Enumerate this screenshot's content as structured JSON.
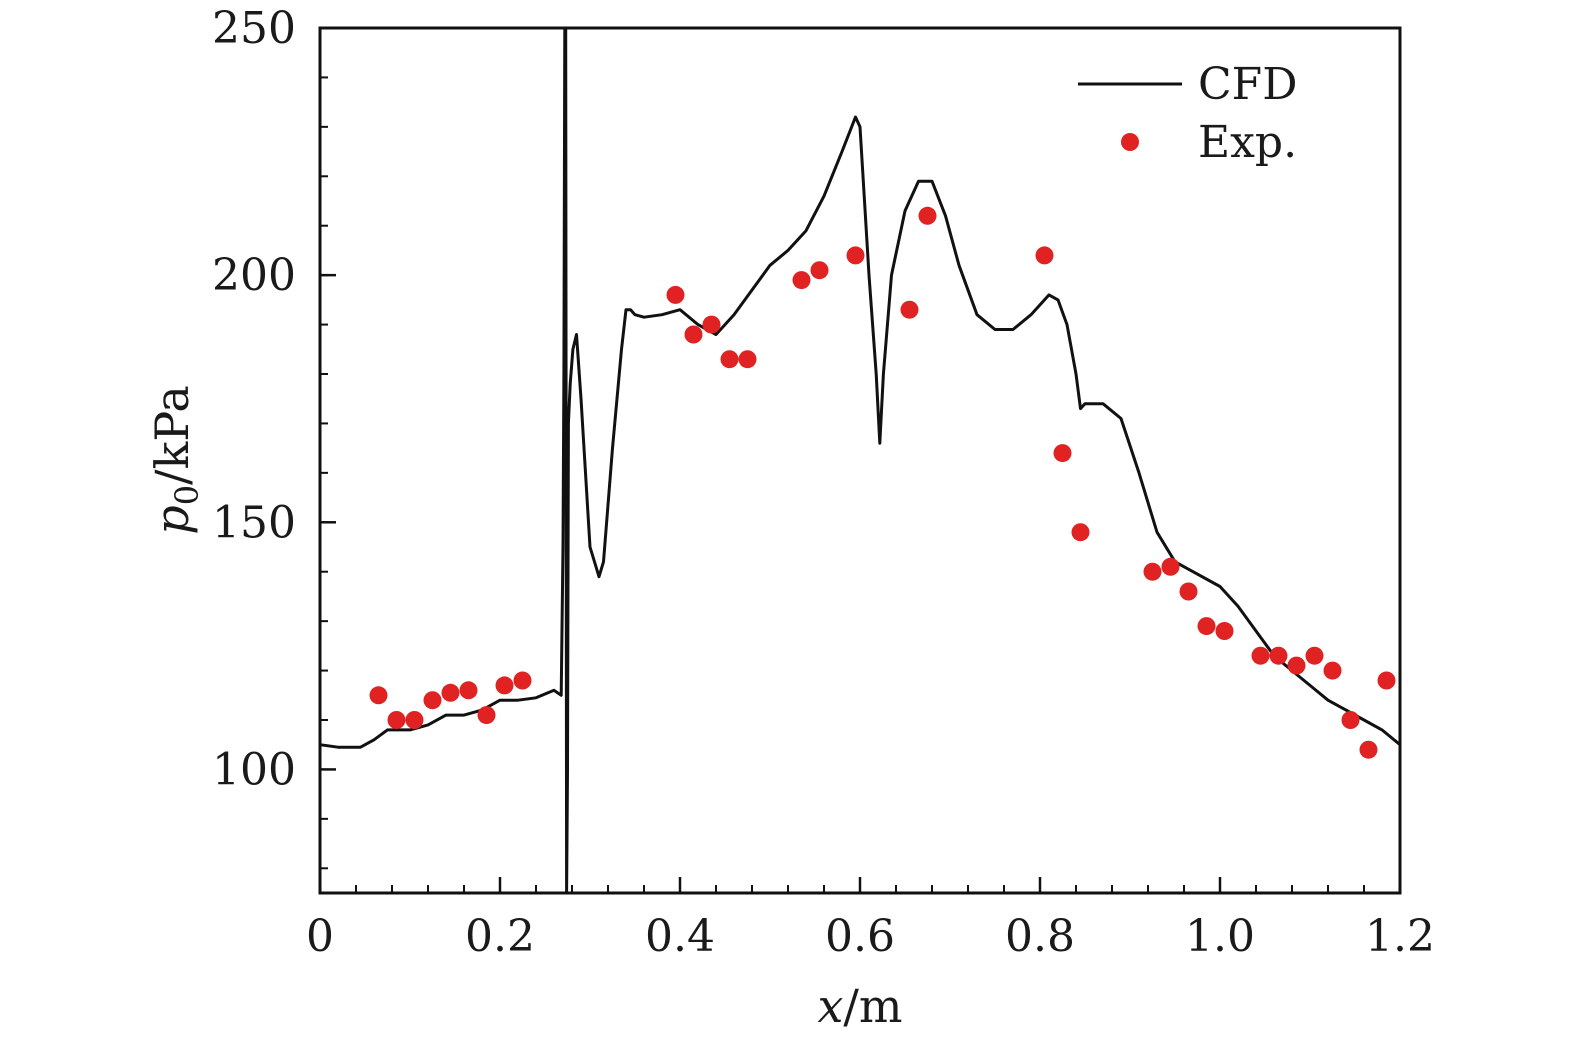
{
  "chart_data": {
    "type": "line",
    "title": "",
    "xlabel": "x/m",
    "ylabel": "p0/kPa",
    "xlabel_parts": {
      "var": "x",
      "unit": "/m"
    },
    "ylabel_parts": {
      "var": "p",
      "sub": "0",
      "unit": "/kPa"
    },
    "xlim": [
      0,
      1.2
    ],
    "ylim": [
      75,
      250
    ],
    "x_ticks": [
      0,
      0.2,
      0.4,
      0.6,
      0.8,
      1.0,
      1.2
    ],
    "x_tick_labels": [
      "0",
      "0.2",
      "0.4",
      "0.6",
      "0.8",
      "1.0",
      "1.2"
    ],
    "y_ticks": [
      100,
      150,
      200,
      250
    ],
    "y_tick_labels": [
      "100",
      "150",
      "200",
      "250"
    ],
    "x_minor_step": 0.04,
    "y_minor_step": 10,
    "grid": false,
    "legend_position": "top-right",
    "colors": {
      "line": "#111111",
      "points": "#e02222",
      "axis": "#111111"
    },
    "series": [
      {
        "name": "CFD",
        "kind": "line",
        "x": [
          0.0,
          0.02,
          0.045,
          0.06,
          0.075,
          0.1,
          0.12,
          0.14,
          0.16,
          0.18,
          0.2,
          0.22,
          0.24,
          0.26,
          0.268,
          0.27,
          0.271,
          0.272,
          0.273,
          0.274,
          0.275,
          0.276,
          0.278,
          0.281,
          0.285,
          0.29,
          0.3,
          0.31,
          0.315,
          0.325,
          0.335,
          0.34,
          0.345,
          0.35,
          0.36,
          0.38,
          0.4,
          0.42,
          0.44,
          0.46,
          0.48,
          0.5,
          0.52,
          0.54,
          0.56,
          0.58,
          0.595,
          0.6,
          0.61,
          0.618,
          0.622,
          0.626,
          0.635,
          0.65,
          0.665,
          0.68,
          0.695,
          0.71,
          0.73,
          0.75,
          0.77,
          0.79,
          0.81,
          0.82,
          0.83,
          0.84,
          0.845,
          0.85,
          0.87,
          0.89,
          0.91,
          0.93,
          0.95,
          0.97,
          1.0,
          1.02,
          1.04,
          1.06,
          1.08,
          1.1,
          1.12,
          1.14,
          1.16,
          1.18,
          1.2
        ],
        "y": [
          105,
          104.5,
          104.5,
          106,
          108,
          108,
          109,
          111,
          111,
          112,
          114,
          114,
          114.5,
          116,
          115,
          145,
          180,
          250,
          250,
          75,
          100,
          170,
          178,
          185,
          188,
          175,
          145,
          139,
          142,
          165,
          185,
          193,
          193,
          192,
          191.5,
          192,
          193,
          190,
          188,
          192,
          197,
          202,
          205,
          209,
          216,
          225,
          232,
          230,
          200,
          180,
          166,
          180,
          200,
          213,
          219,
          219,
          212,
          202,
          192,
          189,
          189,
          192,
          196,
          195,
          190,
          180,
          173,
          174,
          174,
          171,
          160,
          148,
          142,
          140,
          137,
          133,
          128,
          123,
          120,
          117,
          114,
          112,
          110,
          108,
          105
        ]
      },
      {
        "name": "Exp.",
        "kind": "scatter",
        "x": [
          0.065,
          0.085,
          0.105,
          0.125,
          0.145,
          0.165,
          0.185,
          0.205,
          0.225,
          0.395,
          0.415,
          0.435,
          0.455,
          0.475,
          0.535,
          0.555,
          0.595,
          0.655,
          0.675,
          0.805,
          0.825,
          0.845,
          0.925,
          0.945,
          0.965,
          0.985,
          1.005,
          1.045,
          1.065,
          1.085,
          1.105,
          1.125,
          1.145,
          1.165,
          1.185
        ],
        "y": [
          115,
          110,
          110,
          114,
          115.5,
          116,
          111,
          117,
          118,
          196,
          188,
          190,
          183,
          183,
          199,
          201,
          204,
          193,
          212,
          204,
          164,
          148,
          140,
          141,
          136,
          129,
          128,
          123,
          123,
          121,
          123,
          120,
          110,
          104,
          118
        ]
      }
    ]
  }
}
